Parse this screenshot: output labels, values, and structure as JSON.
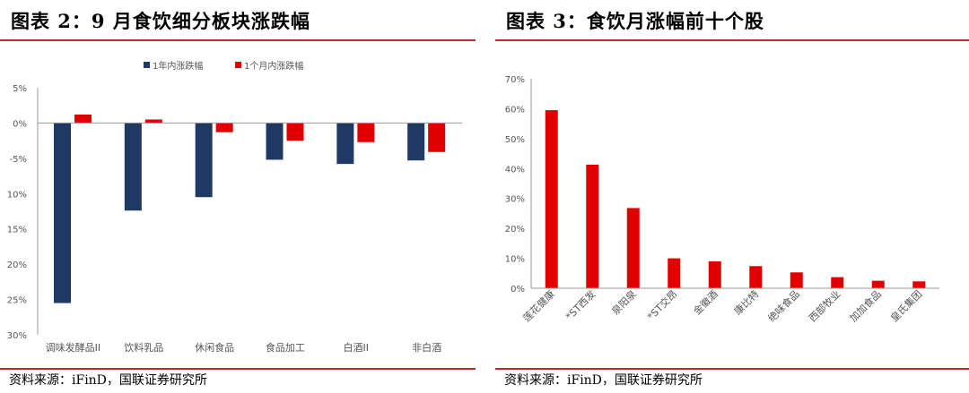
{
  "colors": {
    "navy": "#1f3864",
    "red": "#e00000",
    "accent": "#c0282d"
  },
  "left": {
    "title": "图表 2：9 月食饮细分板块涨跌幅",
    "source": "资料来源：iFinD，国联证券研究所",
    "chart_data": {
      "type": "bar",
      "categories": [
        "调味发酵品II",
        "饮料乳品",
        "休闲食品",
        "食品加工",
        "白酒II",
        "非白酒"
      ],
      "series": [
        {
          "name": "1年内涨跌幅",
          "values": [
            -25.5,
            -12.4,
            -10.5,
            -5.2,
            -5.8,
            -5.3
          ]
        },
        {
          "name": "1个月内涨跌幅",
          "values": [
            1.2,
            0.5,
            -1.3,
            -2.5,
            -2.7,
            -4.1
          ]
        }
      ],
      "yticks": [
        "5%",
        "0%",
        "-5%",
        "10%",
        "15%",
        "20%",
        "25%",
        "30%"
      ],
      "ylim": [
        -30,
        5
      ],
      "legend": "top"
    }
  },
  "right": {
    "title": "图表 3：食饮月涨幅前十个股",
    "source": "资料来源：iFinD，国联证券研究所",
    "chart_data": {
      "type": "bar",
      "categories": [
        "莲花健康",
        "*ST西发",
        "泉阳泉",
        "*ST交昂",
        "金徽酒",
        "康比特",
        "绝味食品",
        "西部牧业",
        "加加食品",
        "皇氏集团"
      ],
      "values": [
        59.5,
        41.3,
        26.8,
        10.0,
        9.0,
        7.4,
        5.3,
        3.7,
        2.5,
        2.3
      ],
      "yticks": [
        "70%",
        "60%",
        "50%",
        "40%",
        "30%",
        "20%",
        "10%",
        "0%"
      ],
      "ylim": [
        0,
        70
      ]
    }
  }
}
